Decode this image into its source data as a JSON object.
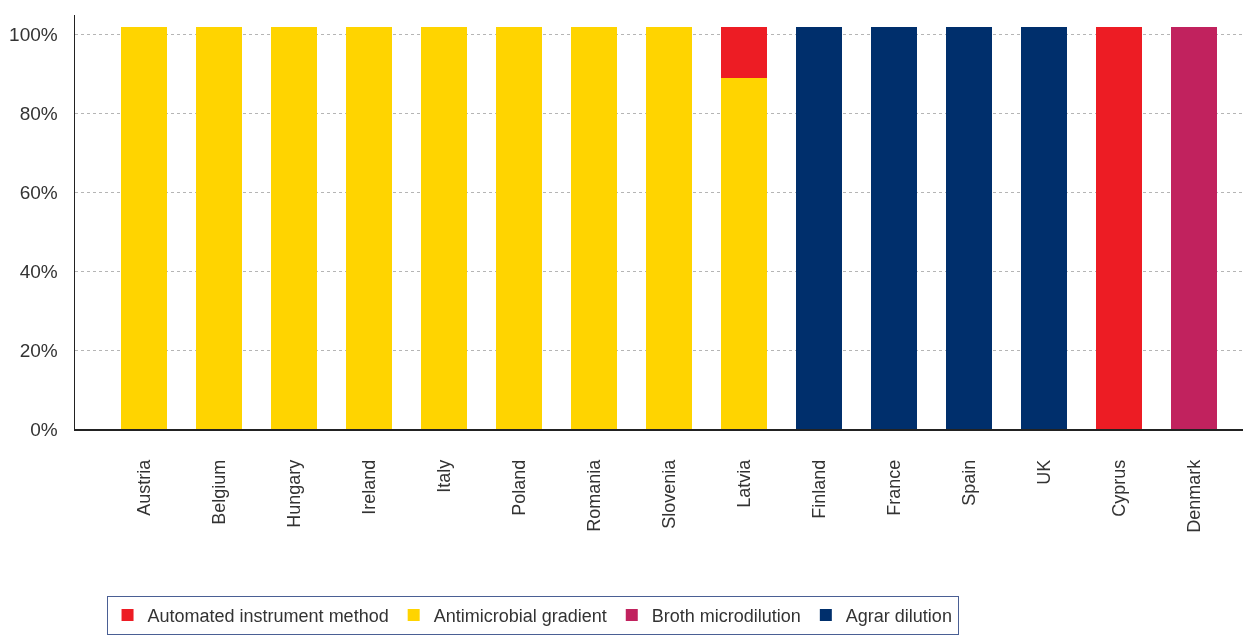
{
  "chart_data": {
    "type": "bar",
    "stacked": true,
    "categories": [
      "Austria",
      "Belgium",
      "Hungary",
      "Ireland",
      "Italy",
      "Poland",
      "Romania",
      "Slovenia",
      "Latvia",
      "Finland",
      "France",
      "Spain",
      "UK",
      "Cyprus",
      "Denmark"
    ],
    "series": [
      {
        "name": "Agrar dilution",
        "color": "#002f6c",
        "values": [
          null,
          null,
          null,
          null,
          null,
          null,
          null,
          null,
          null,
          102,
          102,
          102,
          102,
          null,
          null
        ]
      },
      {
        "name": "Broth microdilution",
        "color": "#c1225e",
        "values": [
          null,
          null,
          null,
          null,
          null,
          null,
          null,
          null,
          null,
          null,
          null,
          null,
          null,
          null,
          102
        ]
      },
      {
        "name": "Antimicrobial gradient",
        "color": "#ffd400",
        "values": [
          102,
          102,
          102,
          102,
          102,
          102,
          102,
          102,
          89,
          null,
          null,
          null,
          null,
          null,
          null
        ]
      },
      {
        "name": "Automated instrument method",
        "color": "#ed1c24",
        "values": [
          null,
          null,
          null,
          null,
          null,
          null,
          null,
          null,
          13,
          null,
          null,
          null,
          null,
          102,
          null
        ]
      }
    ],
    "ylim": [
      0,
      105
    ],
    "yticks": [
      {
        "value": 0,
        "label": "0%"
      },
      {
        "value": 20,
        "label": "20%"
      },
      {
        "value": 40,
        "label": "40%"
      },
      {
        "value": 60,
        "label": "60%"
      },
      {
        "value": 80,
        "label": "80%"
      },
      {
        "value": 100,
        "label": "100%"
      }
    ],
    "grid": "y",
    "legend": "bottom"
  }
}
